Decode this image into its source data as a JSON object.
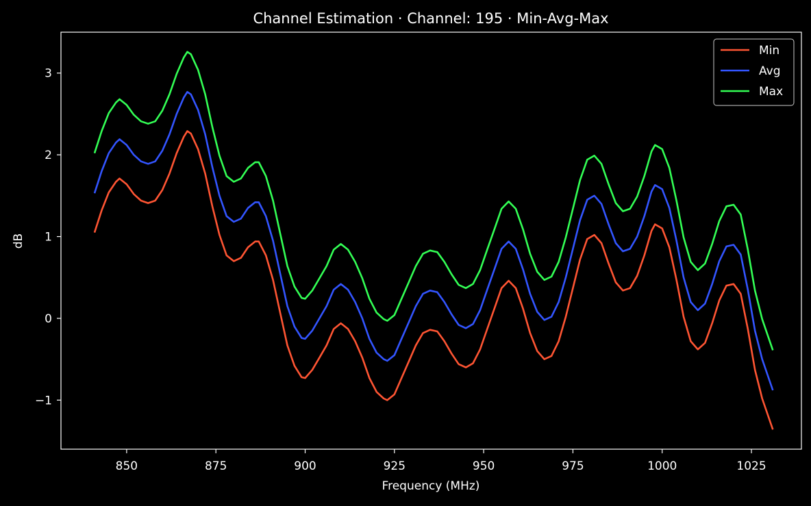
{
  "chart_data": {
    "type": "line",
    "title": "Channel Estimation · Channel: 195 · Min-Avg-Max",
    "xlabel": "Frequency (MHz)",
    "ylabel": "dB",
    "xlim": [
      831.6,
      1039
    ],
    "ylim": [
      -1.6,
      3.5
    ],
    "xticks": [
      850,
      875,
      900,
      925,
      950,
      975,
      1000,
      1025
    ],
    "yticks": [
      -1,
      0,
      1,
      2,
      3
    ],
    "ytick_labels": [
      "−1",
      "0",
      "1",
      "2",
      "3"
    ],
    "grid": false,
    "legend_position": "top-right",
    "background": "#000000",
    "x": [
      841,
      843,
      845,
      847,
      848,
      850,
      852,
      854,
      856,
      858,
      860,
      862,
      864,
      866,
      867,
      868,
      870,
      872,
      874,
      876,
      878,
      880,
      882,
      884,
      886,
      887,
      889,
      891,
      893,
      895,
      897,
      899,
      900,
      902,
      904,
      906,
      908,
      910,
      912,
      914,
      916,
      918,
      920,
      922,
      923,
      925,
      927,
      929,
      931,
      933,
      935,
      937,
      939,
      941,
      943,
      945,
      947,
      949,
      951,
      953,
      955,
      957,
      959,
      961,
      963,
      965,
      967,
      969,
      971,
      973,
      975,
      977,
      979,
      981,
      983,
      985,
      987,
      989,
      991,
      993,
      995,
      997,
      998,
      1000,
      1002,
      1004,
      1006,
      1008,
      1010,
      1012,
      1014,
      1016,
      1018,
      1020,
      1022,
      1024,
      1026,
      1028,
      1031
    ],
    "series": [
      {
        "name": "Min",
        "color": "#ff5533",
        "values": [
          1.05,
          1.32,
          1.54,
          1.67,
          1.71,
          1.64,
          1.52,
          1.44,
          1.41,
          1.44,
          1.57,
          1.77,
          2.02,
          2.22,
          2.29,
          2.26,
          2.07,
          1.77,
          1.37,
          1.02,
          0.77,
          0.7,
          0.74,
          0.87,
          0.94,
          0.94,
          0.77,
          0.47,
          0.07,
          -0.33,
          -0.58,
          -0.72,
          -0.73,
          -0.63,
          -0.48,
          -0.33,
          -0.13,
          -0.06,
          -0.13,
          -0.28,
          -0.48,
          -0.73,
          -0.9,
          -0.98,
          -1.0,
          -0.93,
          -0.73,
          -0.53,
          -0.33,
          -0.18,
          -0.14,
          -0.16,
          -0.28,
          -0.43,
          -0.56,
          -0.6,
          -0.55,
          -0.38,
          -0.13,
          0.12,
          0.37,
          0.46,
          0.37,
          0.12,
          -0.18,
          -0.4,
          -0.5,
          -0.46,
          -0.28,
          0.02,
          0.37,
          0.72,
          0.97,
          1.02,
          0.92,
          0.67,
          0.44,
          0.34,
          0.37,
          0.52,
          0.77,
          1.07,
          1.15,
          1.1,
          0.87,
          0.47,
          0.02,
          -0.28,
          -0.38,
          -0.3,
          -0.06,
          0.22,
          0.4,
          0.42,
          0.3,
          -0.13,
          -0.63,
          -0.98,
          -1.36
        ]
      },
      {
        "name": "Avg",
        "color": "#3355ff",
        "values": [
          1.53,
          1.8,
          2.02,
          2.15,
          2.19,
          2.12,
          2.0,
          1.92,
          1.89,
          1.92,
          2.05,
          2.25,
          2.5,
          2.7,
          2.77,
          2.74,
          2.55,
          2.25,
          1.85,
          1.5,
          1.25,
          1.18,
          1.22,
          1.35,
          1.42,
          1.42,
          1.25,
          0.95,
          0.55,
          0.15,
          -0.1,
          -0.24,
          -0.25,
          -0.15,
          0.0,
          0.15,
          0.35,
          0.42,
          0.35,
          0.2,
          0.0,
          -0.25,
          -0.42,
          -0.5,
          -0.52,
          -0.45,
          -0.25,
          -0.05,
          0.15,
          0.3,
          0.34,
          0.32,
          0.2,
          0.05,
          -0.08,
          -0.12,
          -0.07,
          0.1,
          0.35,
          0.6,
          0.85,
          0.94,
          0.85,
          0.6,
          0.3,
          0.08,
          -0.02,
          0.02,
          0.2,
          0.5,
          0.85,
          1.2,
          1.45,
          1.5,
          1.4,
          1.15,
          0.92,
          0.82,
          0.85,
          1.0,
          1.25,
          1.55,
          1.63,
          1.58,
          1.35,
          0.95,
          0.5,
          0.2,
          0.1,
          0.18,
          0.42,
          0.7,
          0.88,
          0.9,
          0.78,
          0.35,
          -0.15,
          -0.5,
          -0.88
        ]
      },
      {
        "name": "Max",
        "color": "#33ff55",
        "values": [
          2.02,
          2.29,
          2.51,
          2.64,
          2.68,
          2.61,
          2.49,
          2.41,
          2.38,
          2.41,
          2.54,
          2.74,
          2.99,
          3.19,
          3.26,
          3.23,
          3.04,
          2.74,
          2.34,
          1.99,
          1.74,
          1.67,
          1.71,
          1.84,
          1.91,
          1.91,
          1.74,
          1.44,
          1.04,
          0.64,
          0.39,
          0.25,
          0.24,
          0.34,
          0.49,
          0.64,
          0.84,
          0.91,
          0.84,
          0.69,
          0.49,
          0.24,
          0.07,
          -0.01,
          -0.03,
          0.04,
          0.24,
          0.44,
          0.64,
          0.79,
          0.83,
          0.81,
          0.69,
          0.54,
          0.41,
          0.37,
          0.42,
          0.59,
          0.84,
          1.09,
          1.34,
          1.43,
          1.34,
          1.09,
          0.79,
          0.57,
          0.47,
          0.51,
          0.69,
          0.99,
          1.34,
          1.69,
          1.94,
          1.99,
          1.89,
          1.64,
          1.41,
          1.31,
          1.34,
          1.49,
          1.74,
          2.04,
          2.12,
          2.07,
          1.84,
          1.44,
          0.99,
          0.69,
          0.59,
          0.67,
          0.91,
          1.19,
          1.37,
          1.39,
          1.27,
          0.84,
          0.34,
          -0.01,
          -0.39
        ]
      }
    ]
  }
}
